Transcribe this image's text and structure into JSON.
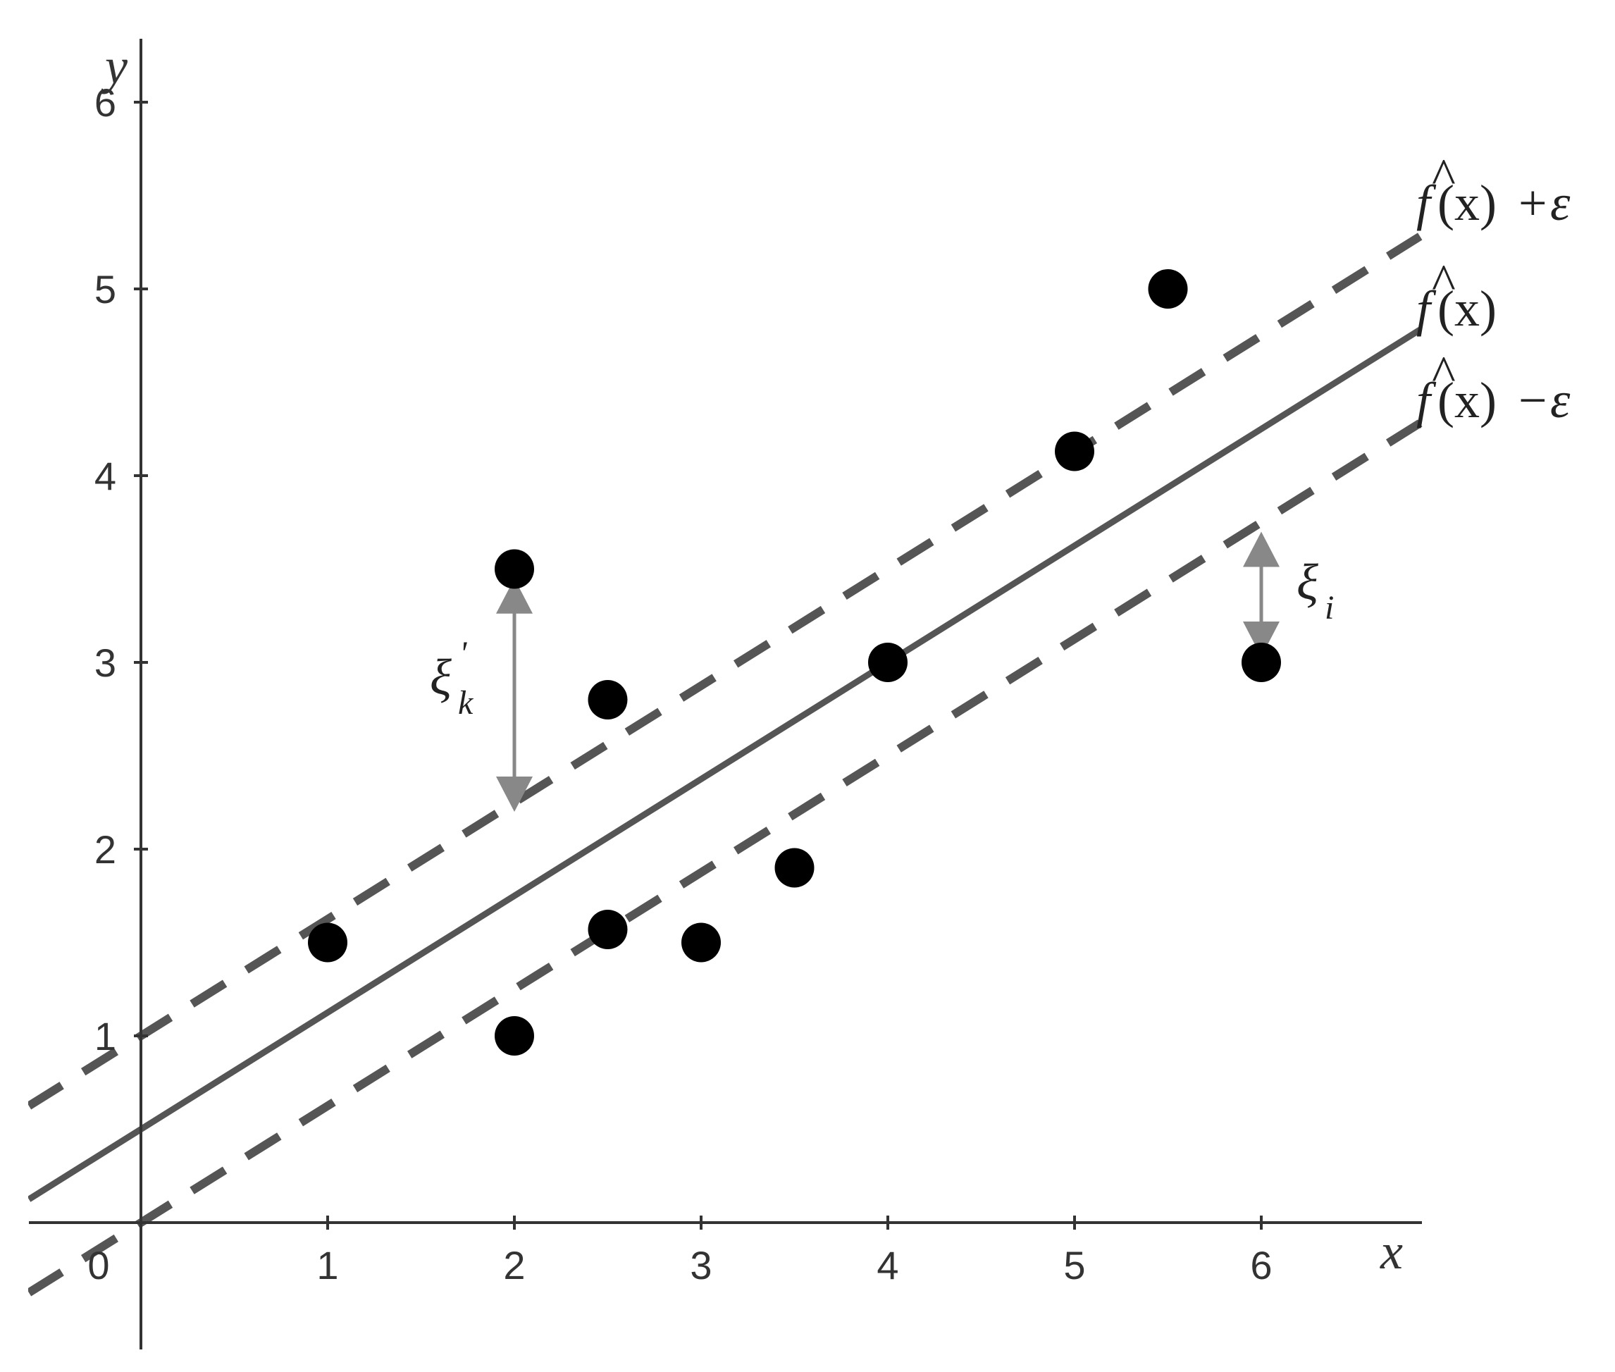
{
  "chart_data": {
    "type": "scatter",
    "title": "",
    "xlabel": "x",
    "ylabel": "y",
    "xlim": [
      -0.6,
      6.9
    ],
    "ylim": [
      -0.65,
      6.35
    ],
    "x_ticks": [
      "0",
      "1",
      "2",
      "3",
      "4",
      "5",
      "6"
    ],
    "y_ticks": [
      "1",
      "2",
      "3",
      "4",
      "5",
      "6"
    ],
    "grid": false,
    "points": [
      {
        "x": 1,
        "y": 1.5
      },
      {
        "x": 2,
        "y": 1.0
      },
      {
        "x": 2,
        "y": 3.5
      },
      {
        "x": 2.5,
        "y": 2.8
      },
      {
        "x": 2.5,
        "y": 1.57
      },
      {
        "x": 3,
        "y": 1.5
      },
      {
        "x": 3.5,
        "y": 1.9
      },
      {
        "x": 4,
        "y": 3.0
      },
      {
        "x": 5,
        "y": 4.13
      },
      {
        "x": 5.5,
        "y": 5.0
      },
      {
        "x": 6,
        "y": 3.0
      }
    ],
    "regression_line": {
      "slope": 0.625,
      "intercept": 0.5,
      "label_base": "f",
      "label_arg": "(x)"
    },
    "epsilon": 0.5,
    "upper_band_label_op": "+",
    "lower_band_label_op": "−",
    "epsilon_symbol": "ε",
    "slack_arrows": [
      {
        "x": 2,
        "y_from": 3.45,
        "y_to": 2.2,
        "symbol": "ξ",
        "subscript": "k",
        "superscript": "'"
      },
      {
        "x": 6,
        "y_from": 3.7,
        "y_to": 3.03,
        "symbol": "ξ",
        "subscript": "i",
        "superscript": ""
      }
    ],
    "colors": {
      "line": "#555555",
      "points": "#000000",
      "arrows": "#888888",
      "axes": "#333333"
    }
  }
}
